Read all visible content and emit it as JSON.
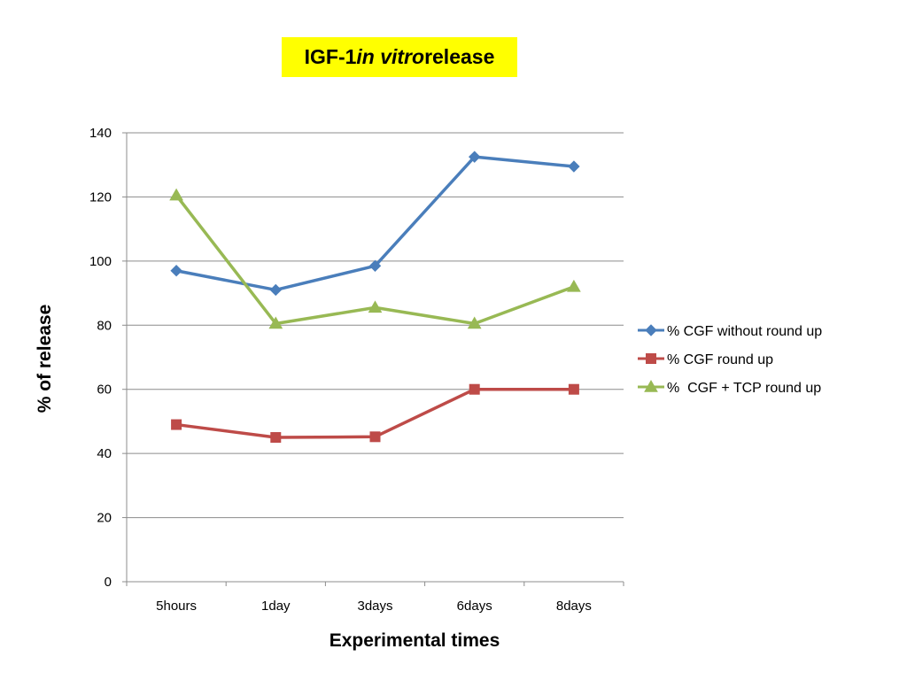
{
  "chart_data": {
    "type": "line",
    "title_parts": [
      "IGF-1 ",
      "in vitro",
      " release"
    ],
    "title_bg": "#ffff00",
    "xlabel": "Experimental times",
    "ylabel": "% of release",
    "categories": [
      "5hours",
      "1day",
      "3days",
      "6days",
      "8days"
    ],
    "ylim": [
      0,
      140
    ],
    "yticks": [
      0,
      20,
      40,
      60,
      80,
      100,
      120,
      140
    ],
    "grid": true,
    "legend_position": "right",
    "series": [
      {
        "name": "% CGF without round up",
        "color": "#4a7ebb",
        "marker": "diamond",
        "values": [
          97,
          91,
          98.5,
          132.5,
          129.5
        ]
      },
      {
        "name": "% CGF round up",
        "color": "#be4b48",
        "marker": "square",
        "values": [
          49,
          45,
          45.2,
          60,
          60
        ]
      },
      {
        "name": "%  CGF + TCP round up",
        "color": "#98b954",
        "marker": "triangle",
        "values": [
          120.5,
          80.5,
          85.5,
          80.5,
          92
        ]
      }
    ]
  }
}
